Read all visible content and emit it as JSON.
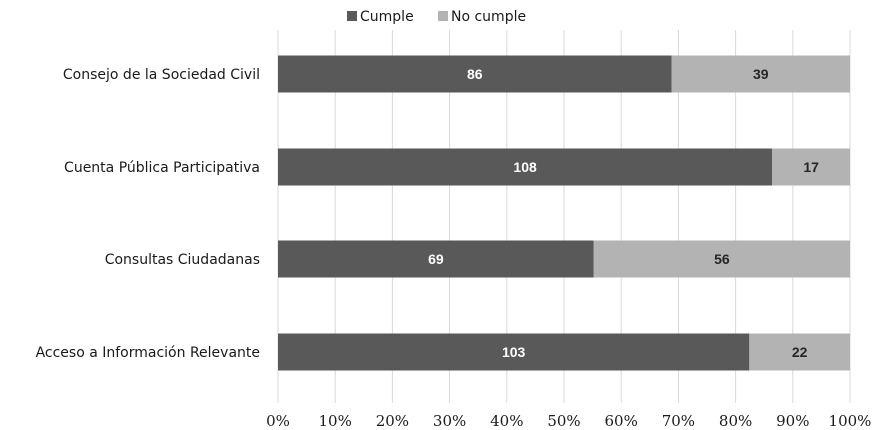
{
  "chart_data": {
    "type": "bar",
    "orientation": "horizontal",
    "stacked": "percent",
    "categories": [
      "Consejo de la Sociedad Civil",
      "Cuenta Pública Participativa",
      "Consultas Ciudadanas",
      "Acceso a Información Relevante"
    ],
    "series": [
      {
        "name": "Cumple",
        "values": [
          86,
          108,
          69,
          103
        ],
        "color": "#595959",
        "label_color": "#ffffff"
      },
      {
        "name": "No cumple",
        "values": [
          39,
          17,
          56,
          22
        ],
        "color": "#b3b3b3",
        "label_color": "#262626"
      }
    ],
    "xticks": [
      "0%",
      "10%",
      "20%",
      "30%",
      "40%",
      "50%",
      "60%",
      "70%",
      "80%",
      "90%",
      "100%"
    ],
    "xlim": [
      0,
      100
    ],
    "grid": "vertical",
    "gridline_color": "#d9d9d9",
    "legend_position": "top",
    "title": "",
    "xlabel": "",
    "ylabel": ""
  }
}
